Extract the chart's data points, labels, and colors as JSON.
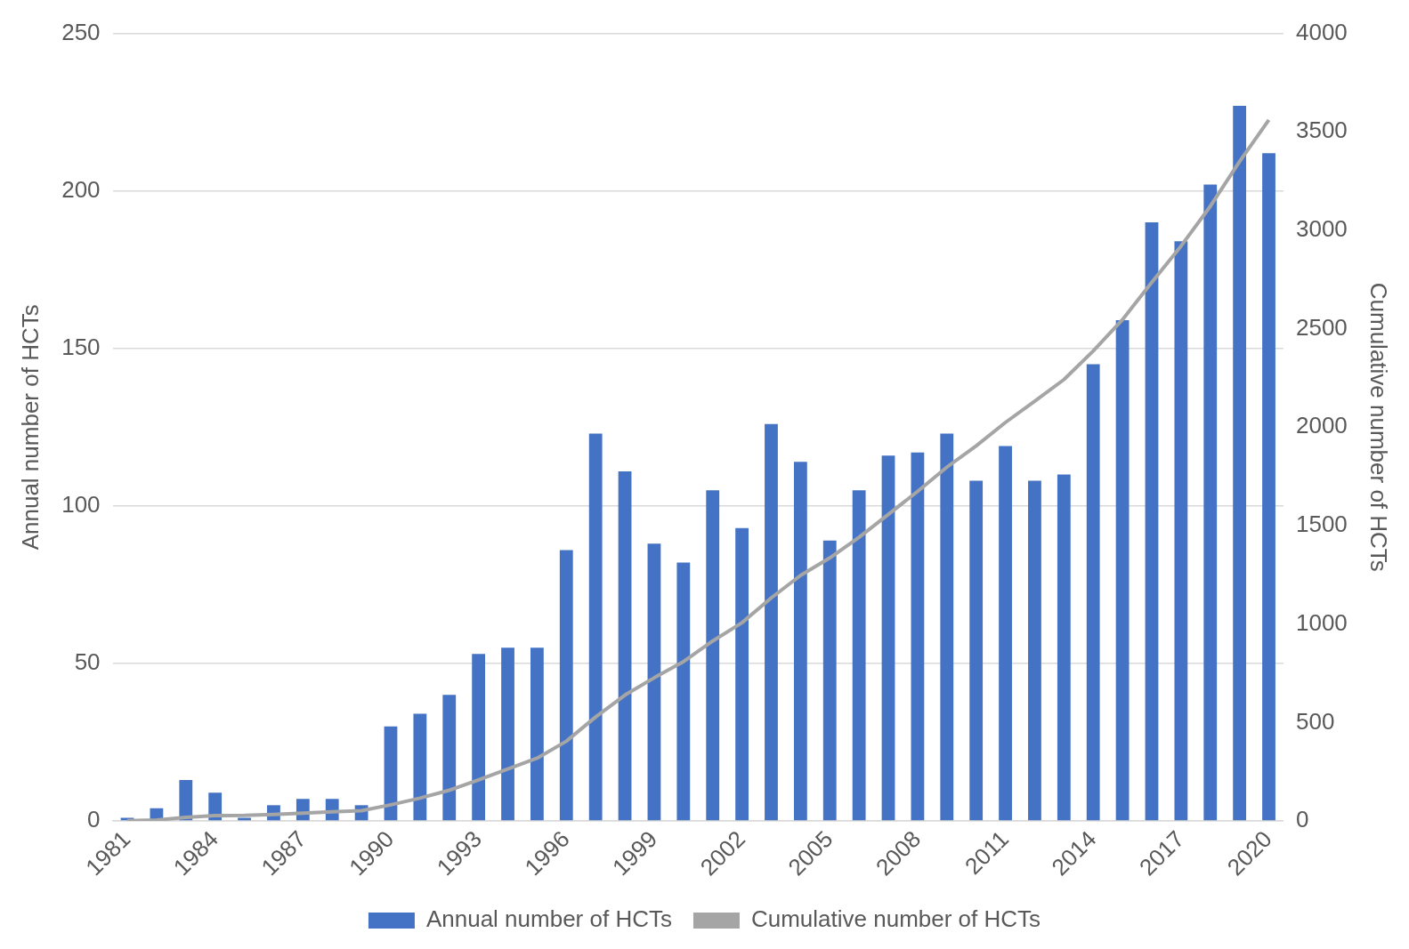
{
  "chart_data": {
    "type": "bar",
    "categories": [
      "1981",
      null,
      null,
      "1984",
      null,
      null,
      "1987",
      null,
      null,
      "1990",
      null,
      null,
      "1993",
      null,
      null,
      "1996",
      null,
      null,
      "1999",
      null,
      null,
      "2002",
      null,
      null,
      "2005",
      null,
      null,
      "2008",
      null,
      null,
      "2011",
      null,
      null,
      "2014",
      null,
      null,
      "2017",
      null,
      null,
      "2020"
    ],
    "series": [
      {
        "name": "Annual number of HCTs",
        "color": "#4472c4",
        "values": [
          1,
          4,
          13,
          9,
          1,
          5,
          7,
          7,
          5,
          30,
          34,
          40,
          53,
          55,
          55,
          86,
          123,
          111,
          88,
          82,
          105,
          93,
          126,
          114,
          89,
          105,
          116,
          117,
          123,
          108,
          119,
          108,
          110,
          145,
          159,
          190,
          184,
          202,
          227,
          212
        ]
      },
      {
        "name": "Cumulative number of HCTs",
        "type": "line",
        "axis": "y2",
        "color": "#a5a5a5",
        "values": [
          1,
          5,
          18,
          27,
          28,
          33,
          40,
          47,
          52,
          82,
          116,
          156,
          209,
          264,
          319,
          405,
          528,
          639,
          727,
          809,
          914,
          1007,
          1133,
          1247,
          1336,
          1441,
          1557,
          1674,
          1797,
          1905,
          2024,
          2132,
          2242,
          2387,
          2546,
          2736,
          2920,
          3122,
          3349,
          3561
        ]
      }
    ],
    "ylabel": "Annual number of HCTs",
    "y2label": "Cumulative number of HCTs",
    "ylim": [
      0,
      250
    ],
    "yticks": [
      0,
      50,
      100,
      150,
      200,
      250
    ],
    "y2lim": [
      0,
      4000
    ],
    "y2ticks": [
      0,
      500,
      1000,
      1500,
      2000,
      2500,
      3000,
      3500,
      4000
    ],
    "grid": "y",
    "legend": "bottom",
    "marker": "none",
    "line_style": "solid"
  }
}
